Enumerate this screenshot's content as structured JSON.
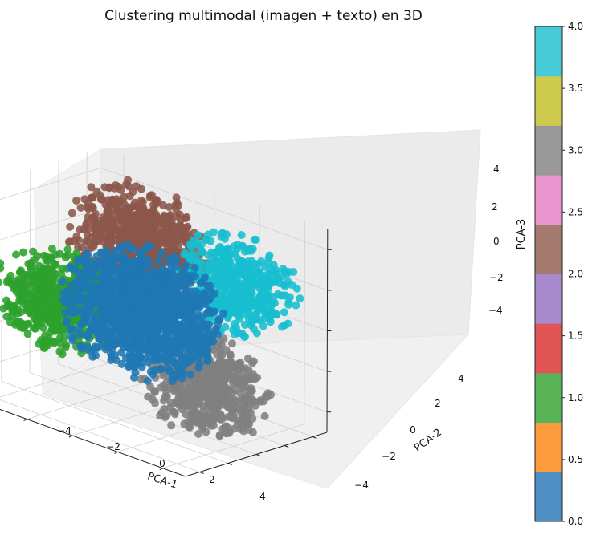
{
  "chart_data": {
    "type": "scatter3d",
    "title": "Clustering multimodal (imagen + texto) en 3D",
    "xlabel": "PCA-1",
    "ylabel": "PCA-2",
    "zlabel": "PCA-3",
    "xlim": [
      -5,
      5
    ],
    "ylim": [
      -5,
      5
    ],
    "zlim": [
      -5,
      5
    ],
    "x_ticks": [
      "−4",
      "−2",
      "0",
      "2",
      "4"
    ],
    "y_ticks": [
      "−4",
      "−2",
      "0",
      "2",
      "4"
    ],
    "z_ticks": [
      "−4",
      "−2",
      "0",
      "2",
      "4"
    ],
    "grid": true,
    "colormap": "tab10",
    "colorbar": {
      "min": 0.0,
      "max": 4.0,
      "ticks": [
        "0.0",
        "0.5",
        "1.0",
        "1.5",
        "2.0",
        "2.5",
        "3.0",
        "3.5",
        "4.0"
      ],
      "colors": [
        "#4e8fc6",
        "#ff9b3f",
        "#58b457",
        "#e05454",
        "#a98ace",
        "#a67b6f",
        "#e995cf",
        "#989898",
        "#cdca4d",
        "#48cbd8"
      ]
    },
    "clusters": [
      {
        "label": 2,
        "color": "#8c564b",
        "center": [
          -1.5,
          2.0,
          2.5
        ],
        "spread": 1.3,
        "count": 700
      },
      {
        "label": 4,
        "color": "#17becf",
        "center": [
          2.0,
          3.2,
          1.5
        ],
        "spread": 1.2,
        "count": 500
      },
      {
        "label": 1,
        "color": "#2ca02c",
        "center": [
          -2.5,
          -2.0,
          0.0
        ],
        "spread": 1.2,
        "count": 550
      },
      {
        "label": 3,
        "color": "#7f7f7f",
        "center": [
          2.8,
          0.0,
          -2.5
        ],
        "spread": 1.2,
        "count": 600
      },
      {
        "label": 0,
        "color": "#1f77b4",
        "center": [
          0.0,
          0.0,
          0.0
        ],
        "spread": 1.55,
        "count": 1300
      }
    ]
  }
}
